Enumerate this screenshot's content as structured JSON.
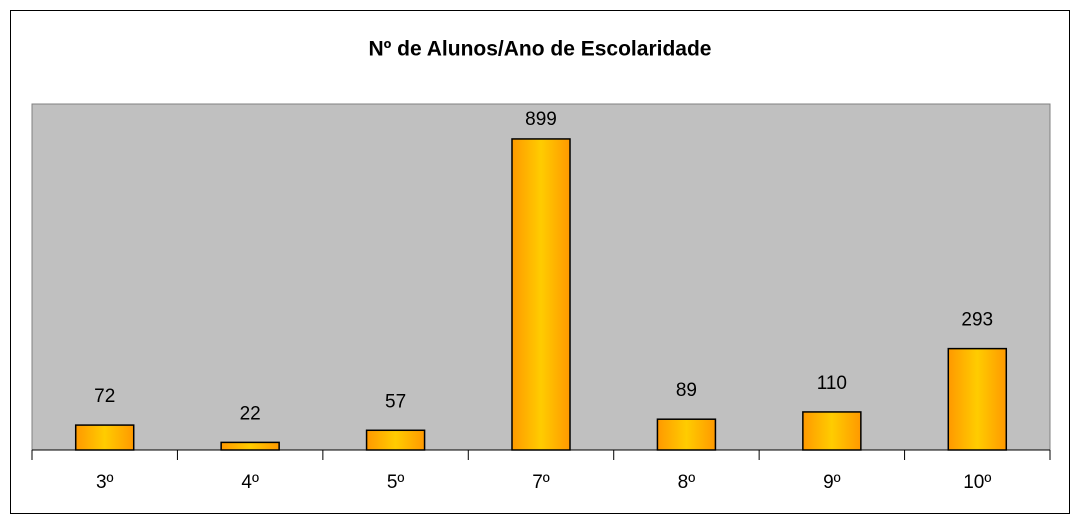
{
  "chart_data": {
    "type": "bar",
    "title": "Nº de Alunos/Ano de Escolaridade",
    "categories": [
      "3º",
      "4º",
      "5º",
      "7º",
      "8º",
      "9º",
      "10º"
    ],
    "values": [
      72,
      22,
      57,
      899,
      89,
      110,
      293
    ],
    "color": "#ffcc00",
    "ylim": [
      0,
      1000
    ]
  }
}
